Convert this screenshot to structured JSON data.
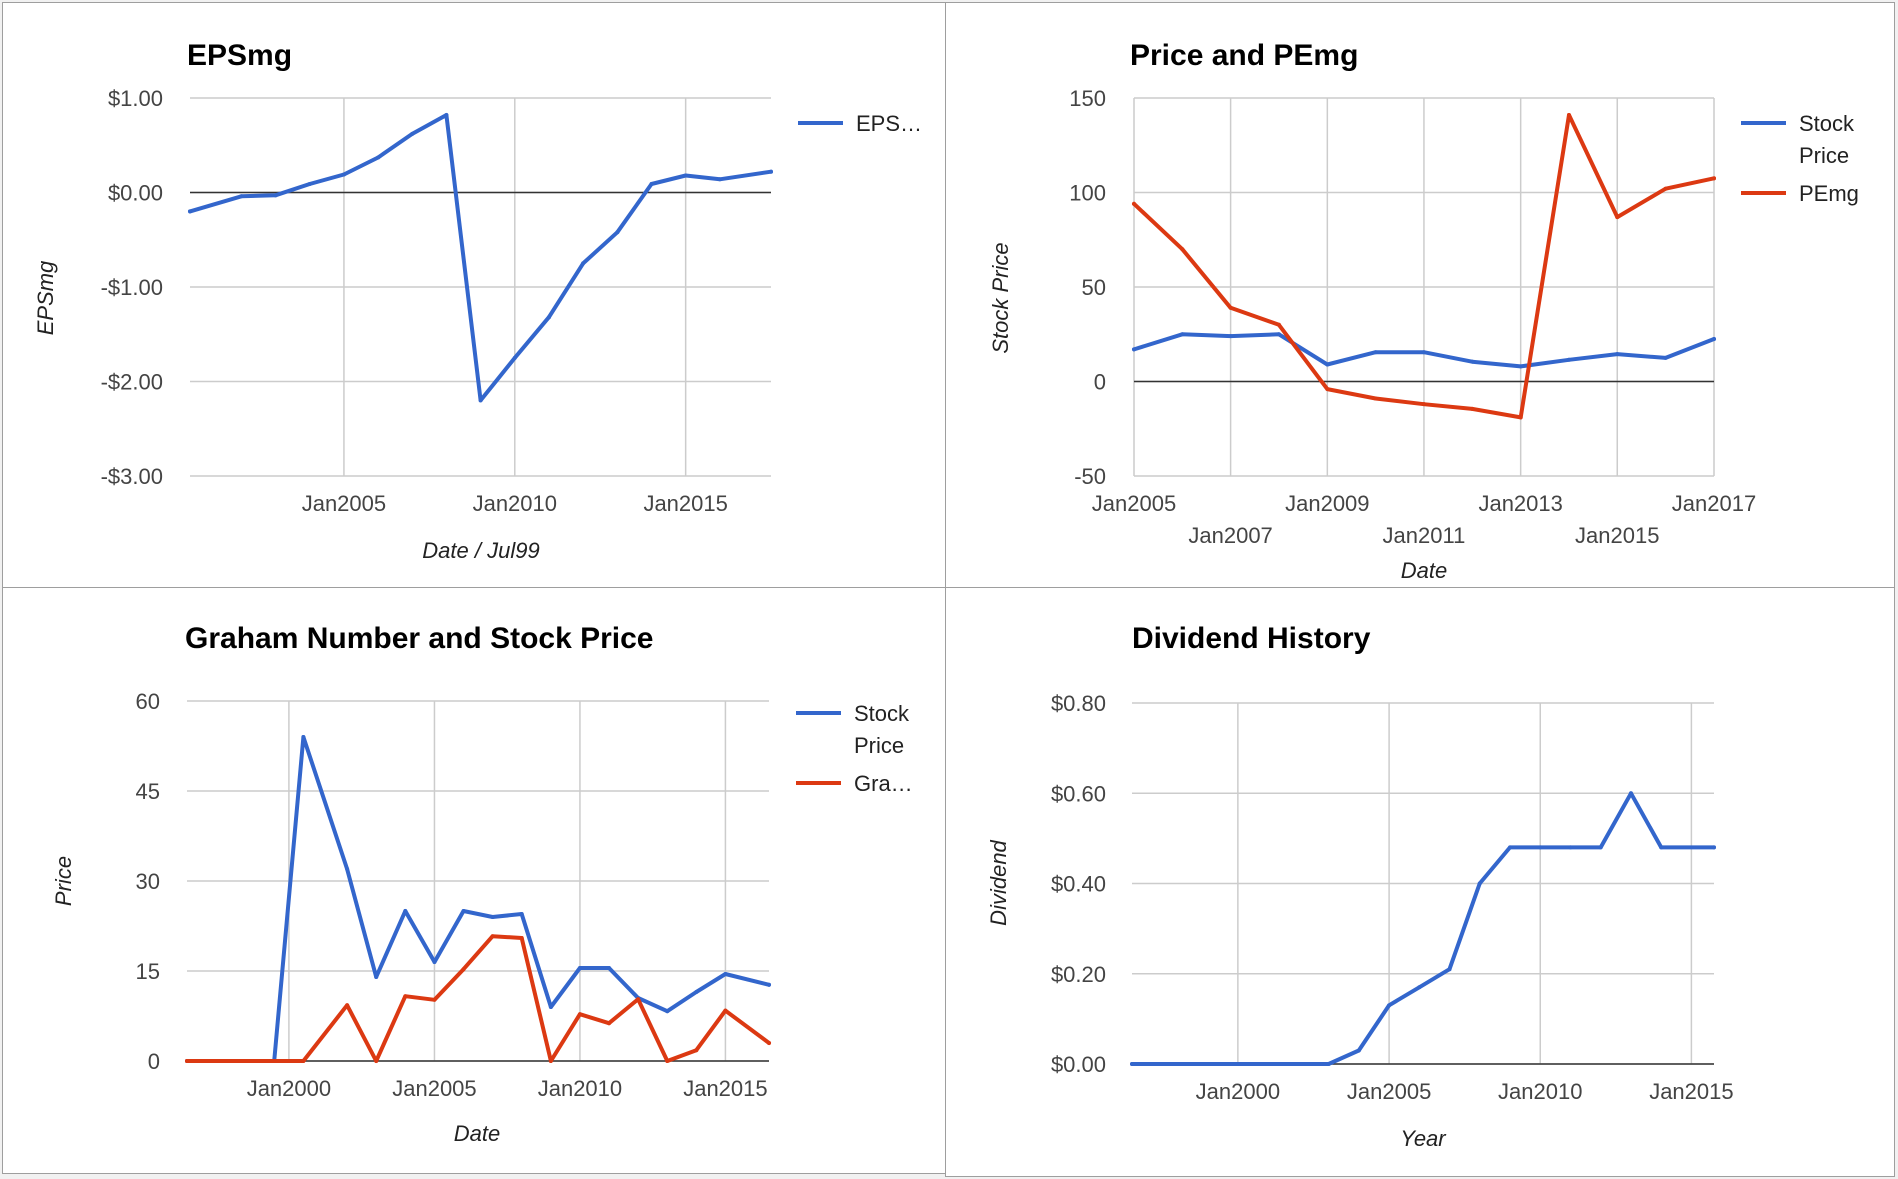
{
  "chart_data": [
    {
      "type": "line",
      "title": "EPSmg",
      "xlabel": "Date / Jul99",
      "ylabel": "EPSmg",
      "xlim": [
        "2000-07-01",
        "2017-07-01"
      ],
      "ylim": [
        -3,
        1
      ],
      "y_ticks": [
        1,
        0,
        -1,
        -2,
        -3
      ],
      "y_tick_labels": [
        "$1.00",
        "$0.00",
        "-$1.00",
        "-$2.00",
        "-$3.00"
      ],
      "x_ticks": [
        "2005-01-01",
        "2010-01-01",
        "2015-01-01"
      ],
      "x_tick_labels": [
        "Jan2005",
        "Jan2010",
        "Jan2015"
      ],
      "grid": true,
      "legend": "right",
      "series": [
        {
          "name": "EPS…",
          "color": "#3366cc",
          "points": [
            [
              "2000-07-01",
              -0.2
            ],
            [
              "2002-01-01",
              -0.04
            ],
            [
              "2003-01-01",
              -0.03
            ],
            [
              "2004-01-01",
              0.09
            ],
            [
              "2005-01-01",
              0.19
            ],
            [
              "2006-01-01",
              0.37
            ],
            [
              "2007-01-01",
              0.62
            ],
            [
              "2008-01-01",
              0.82
            ],
            [
              "2009-01-01",
              -2.2
            ],
            [
              "2010-01-01",
              -1.75
            ],
            [
              "2011-01-01",
              -1.32
            ],
            [
              "2012-01-01",
              -0.75
            ],
            [
              "2013-01-01",
              -0.42
            ],
            [
              "2014-01-01",
              0.09
            ],
            [
              "2015-01-01",
              0.18
            ],
            [
              "2016-01-01",
              0.14
            ],
            [
              "2017-07-01",
              0.22
            ]
          ]
        }
      ]
    },
    {
      "type": "line",
      "title": "Price and PEmg",
      "xlabel": "Date",
      "ylabel": "Stock Price",
      "xlim": [
        "2005-01-01",
        "2017-01-01"
      ],
      "ylim": [
        -50,
        150
      ],
      "y_ticks": [
        150,
        100,
        50,
        0,
        -50
      ],
      "y_tick_labels": [
        "150",
        "100",
        "50",
        "0",
        "-50"
      ],
      "x_ticks": [
        "2005-01-01",
        "2007-01-01",
        "2009-01-01",
        "2011-01-01",
        "2013-01-01",
        "2015-01-01",
        "2017-01-01"
      ],
      "x_tick_labels": [
        "Jan2005",
        "Jan2007",
        "Jan2009",
        "Jan2011",
        "Jan2013",
        "Jan2015",
        "Jan2017"
      ],
      "grid": true,
      "legend": "right",
      "series": [
        {
          "name": "Stock Price",
          "color": "#3366cc",
          "points": [
            [
              "2005-01-01",
              17
            ],
            [
              "2006-01-01",
              25
            ],
            [
              "2007-01-01",
              24
            ],
            [
              "2008-01-01",
              25
            ],
            [
              "2009-01-01",
              9
            ],
            [
              "2010-01-01",
              15.5
            ],
            [
              "2011-01-01",
              15.5
            ],
            [
              "2012-01-01",
              10.5
            ],
            [
              "2013-01-01",
              8
            ],
            [
              "2014-01-01",
              11.5
            ],
            [
              "2015-01-01",
              14.5
            ],
            [
              "2016-01-01",
              12.5
            ],
            [
              "2017-01-01",
              22.5
            ]
          ]
        },
        {
          "name": "PEmg",
          "color": "#dc3912",
          "points": [
            [
              "2005-01-01",
              94
            ],
            [
              "2006-01-01",
              70
            ],
            [
              "2007-01-01",
              39
            ],
            [
              "2008-01-01",
              30
            ],
            [
              "2009-01-01",
              -4
            ],
            [
              "2010-01-01",
              -9
            ],
            [
              "2011-01-01",
              -12
            ],
            [
              "2012-01-01",
              -14.5
            ],
            [
              "2013-01-01",
              -19
            ],
            [
              "2014-01-01",
              141
            ],
            [
              "2015-01-01",
              87
            ],
            [
              "2016-01-01",
              102
            ],
            [
              "2017-01-01",
              107.5
            ]
          ]
        }
      ]
    },
    {
      "type": "line",
      "title": "Graham Number and Stock Price",
      "xlabel": "Date",
      "ylabel": "Price",
      "xlim": [
        "1996-07-01",
        "2016-07-01"
      ],
      "ylim": [
        0,
        60
      ],
      "y_ticks": [
        60,
        45,
        30,
        15,
        0
      ],
      "y_tick_labels": [
        "60",
        "45",
        "30",
        "15",
        "0"
      ],
      "x_ticks": [
        "2000-01-01",
        "2005-01-01",
        "2010-01-01",
        "2015-01-01"
      ],
      "x_tick_labels": [
        "Jan2000",
        "Jan2005",
        "Jan2010",
        "Jan2015"
      ],
      "grid": true,
      "legend": "right",
      "series": [
        {
          "name": "Stock Price",
          "color": "#3366cc",
          "points": [
            [
              "1996-07-01",
              0
            ],
            [
              "1999-07-01",
              0
            ],
            [
              "2000-07-01",
              54
            ],
            [
              "2002-01-01",
              32
            ],
            [
              "2003-01-01",
              14
            ],
            [
              "2004-01-01",
              25
            ],
            [
              "2005-01-01",
              16.5
            ],
            [
              "2006-01-01",
              25
            ],
            [
              "2007-01-01",
              24
            ],
            [
              "2008-01-01",
              24.5
            ],
            [
              "2009-01-01",
              9
            ],
            [
              "2010-01-01",
              15.5
            ],
            [
              "2011-01-01",
              15.5
            ],
            [
              "2012-01-01",
              10.5
            ],
            [
              "2013-01-01",
              8.3
            ],
            [
              "2014-01-01",
              11.5
            ],
            [
              "2015-01-01",
              14.5
            ],
            [
              "2016-07-01",
              12.7
            ]
          ]
        },
        {
          "name": "Gra…",
          "color": "#dc3912",
          "points": [
            [
              "1996-07-01",
              0
            ],
            [
              "2000-07-01",
              0
            ],
            [
              "2002-01-01",
              9.3
            ],
            [
              "2003-01-01",
              0
            ],
            [
              "2004-01-01",
              10.8
            ],
            [
              "2005-01-01",
              10.2
            ],
            [
              "2006-01-01",
              15.3
            ],
            [
              "2007-01-01",
              20.8
            ],
            [
              "2008-01-01",
              20.5
            ],
            [
              "2009-01-01",
              0
            ],
            [
              "2010-01-01",
              7.8
            ],
            [
              "2011-01-01",
              6.3
            ],
            [
              "2012-01-01",
              10.3
            ],
            [
              "2013-01-01",
              0
            ],
            [
              "2014-01-01",
              1.8
            ],
            [
              "2015-01-01",
              8.4
            ],
            [
              "2016-07-01",
              3
            ]
          ]
        }
      ]
    },
    {
      "type": "line",
      "title": "Dividend History",
      "xlabel": "Year",
      "ylabel": "Dividend",
      "xlim": [
        "1996-07-01",
        "2015-10-01"
      ],
      "ylim": [
        0,
        0.8
      ],
      "y_ticks": [
        0.8,
        0.6,
        0.4,
        0.2,
        0
      ],
      "y_tick_labels": [
        "$0.80",
        "$0.60",
        "$0.40",
        "$0.20",
        "$0.00"
      ],
      "x_ticks": [
        "2000-01-01",
        "2005-01-01",
        "2010-01-01",
        "2015-01-01"
      ],
      "x_tick_labels": [
        "Jan2000",
        "Jan2005",
        "Jan2010",
        "Jan2015"
      ],
      "grid": true,
      "legend": "none",
      "series": [
        {
          "color": "#3366cc",
          "points": [
            [
              "1996-07-01",
              0
            ],
            [
              "2003-01-01",
              0
            ],
            [
              "2004-01-01",
              0.03
            ],
            [
              "2005-01-01",
              0.13
            ],
            [
              "2006-01-01",
              0.17
            ],
            [
              "2007-01-01",
              0.21
            ],
            [
              "2008-01-01",
              0.4
            ],
            [
              "2009-01-01",
              0.48
            ],
            [
              "2010-01-01",
              0.48
            ],
            [
              "2011-01-01",
              0.48
            ],
            [
              "2012-01-01",
              0.48
            ],
            [
              "2013-01-01",
              0.6
            ],
            [
              "2014-01-01",
              0.48
            ],
            [
              "2015-10-01",
              0.48
            ]
          ]
        }
      ]
    }
  ]
}
